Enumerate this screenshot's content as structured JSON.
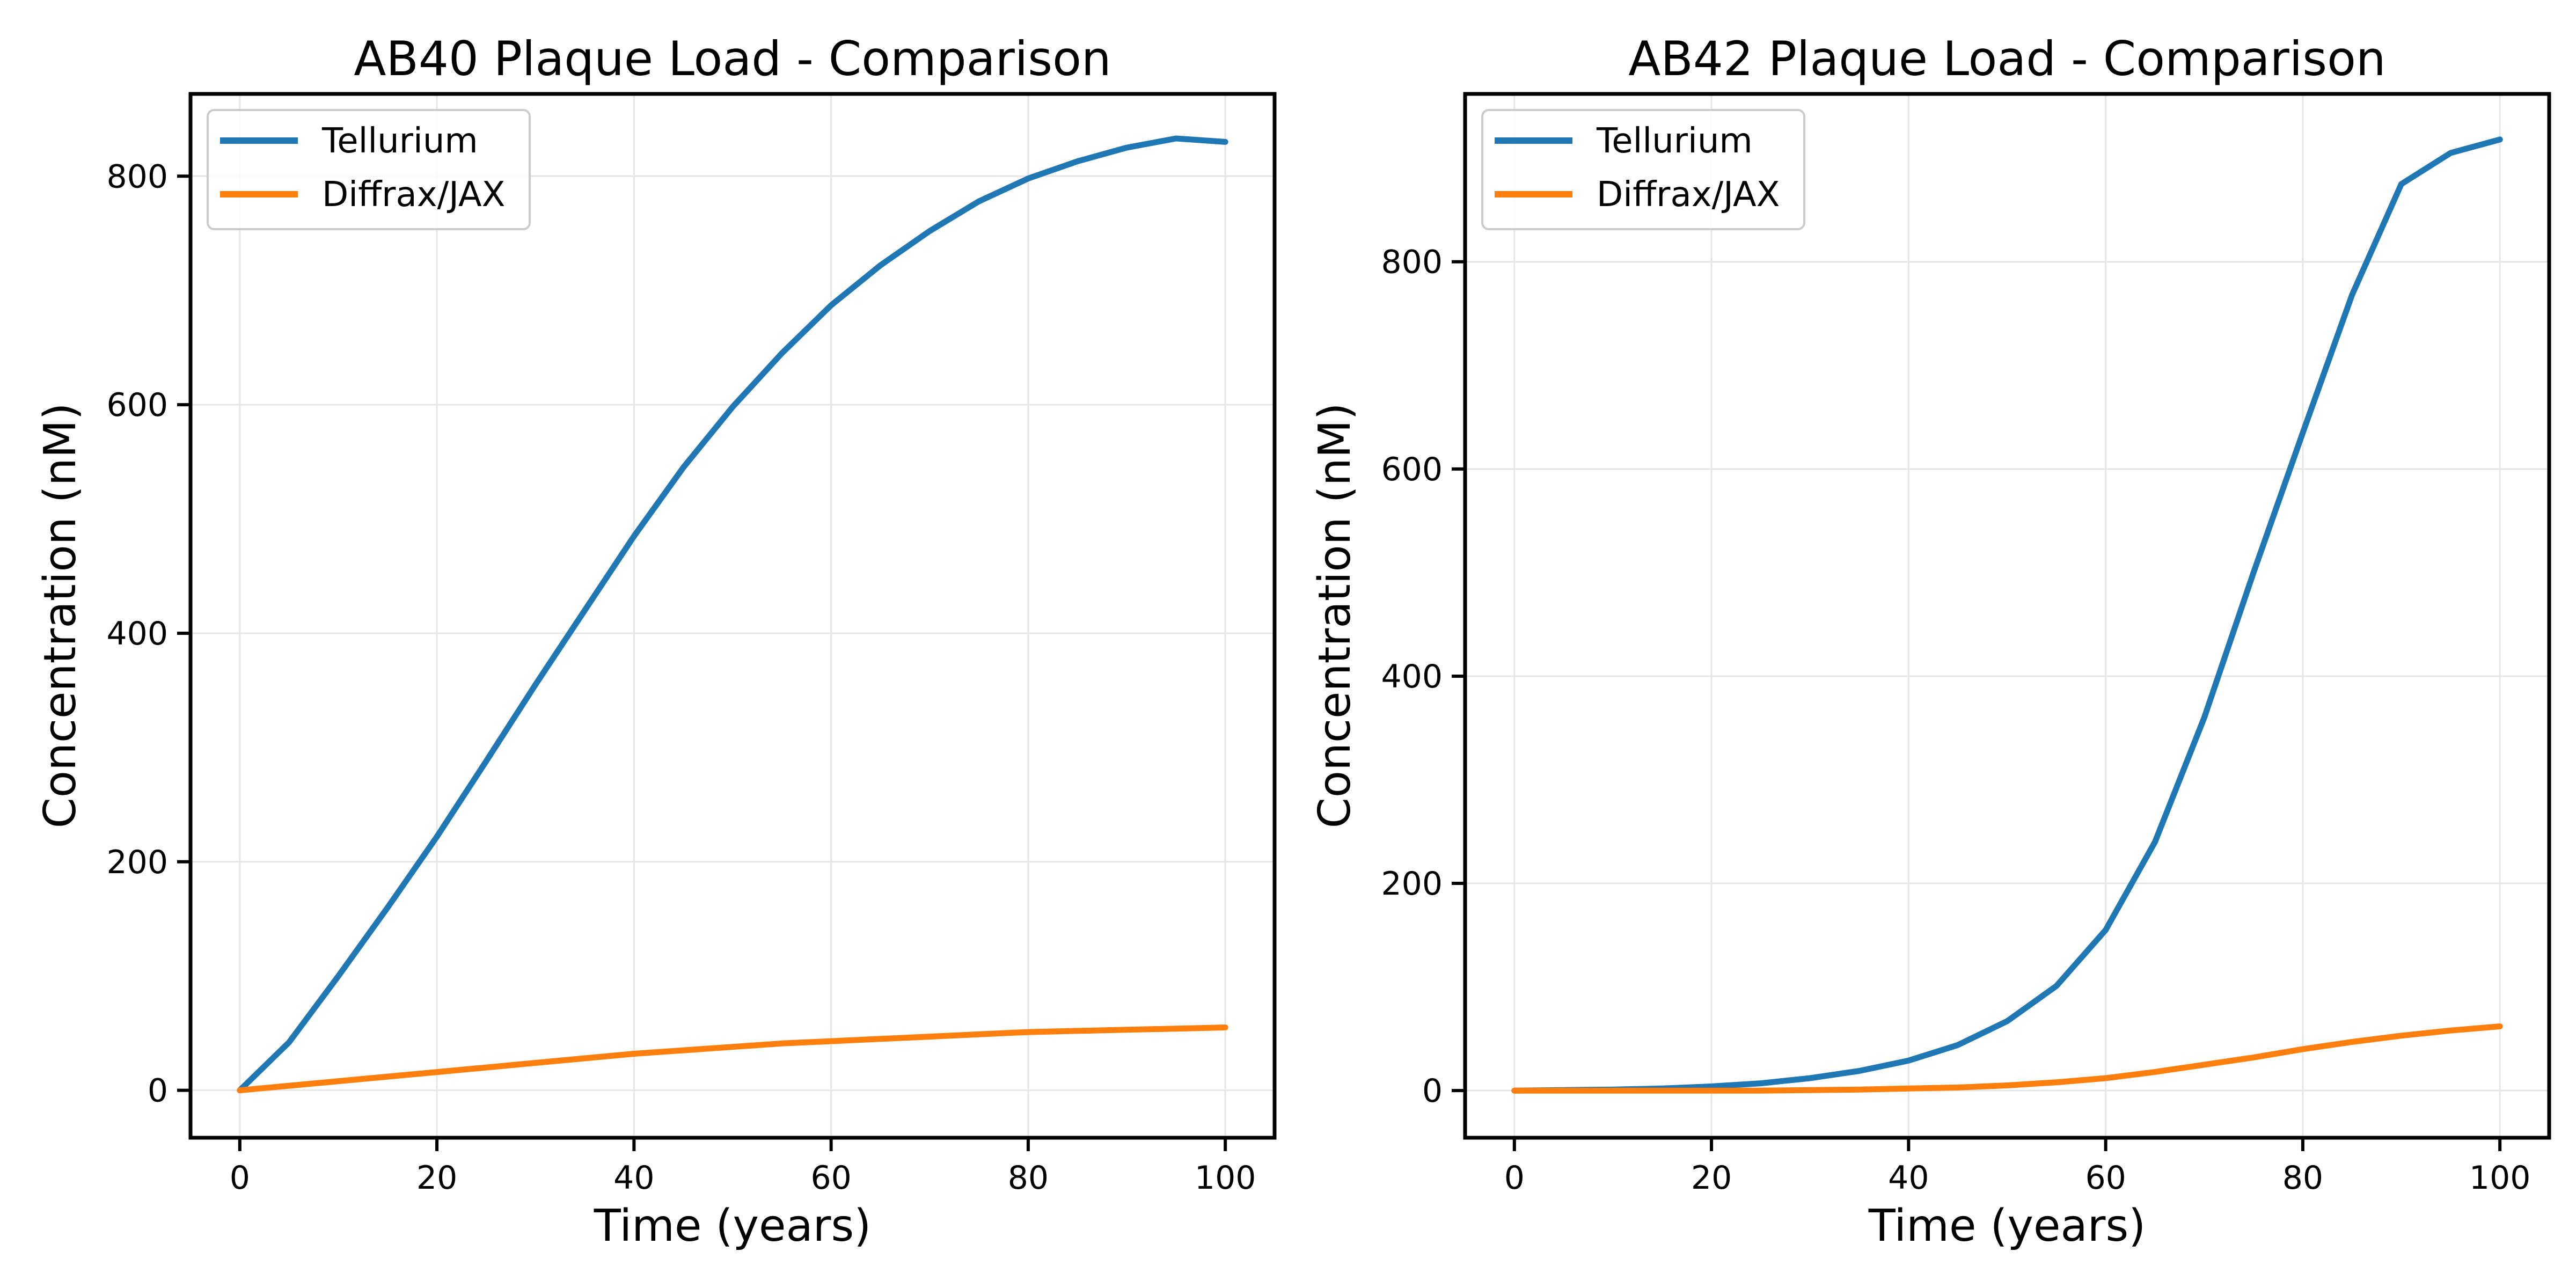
{
  "chart_data": [
    {
      "type": "line",
      "title": "AB40 Plaque Load - Comparison",
      "xlabel": "Time (years)",
      "ylabel": "Concentration (nM)",
      "xlim": [
        -5,
        105
      ],
      "ylim": [
        -41.5,
        872
      ],
      "xticks": [
        0,
        20,
        40,
        60,
        80,
        100
      ],
      "yticks": [
        0,
        200,
        400,
        600,
        800
      ],
      "grid": true,
      "legend_position": "top-left",
      "x": [
        0,
        5,
        10,
        15,
        20,
        25,
        30,
        35,
        40,
        45,
        50,
        55,
        60,
        65,
        70,
        75,
        80,
        85,
        90,
        95,
        100
      ],
      "series": [
        {
          "name": "Tellurium",
          "color": "#1f77b4",
          "values": [
            0,
            42,
            100,
            160,
            222,
            288,
            355,
            420,
            485,
            545,
            598,
            645,
            687,
            722,
            752,
            778,
            798,
            813,
            825,
            833,
            830
          ]
        },
        {
          "name": "Diffrax/JAX",
          "color": "#ff7f0e",
          "values": [
            0,
            4,
            8,
            12,
            16,
            20,
            24,
            28,
            32,
            35,
            38,
            41,
            43,
            45,
            47,
            49,
            51,
            52,
            53,
            54,
            55
          ]
        }
      ]
    },
    {
      "type": "line",
      "title": "AB42 Plaque Load - Comparison",
      "xlabel": "Time (years)",
      "ylabel": "Concentration (nM)",
      "xlim": [
        -5,
        105
      ],
      "ylim": [
        -45.5,
        962
      ],
      "xticks": [
        0,
        20,
        40,
        60,
        80,
        100
      ],
      "yticks": [
        0,
        200,
        400,
        600,
        800
      ],
      "grid": true,
      "legend_position": "top-left",
      "x": [
        0,
        5,
        10,
        15,
        20,
        25,
        30,
        35,
        40,
        45,
        50,
        55,
        60,
        65,
        70,
        75,
        80,
        85,
        90,
        95,
        100
      ],
      "series": [
        {
          "name": "Tellurium",
          "color": "#1f77b4",
          "values": [
            0,
            0.5,
            1,
            2,
            4,
            7,
            12,
            19,
            29,
            44,
            67,
            101,
            155,
            240,
            360,
            500,
            635,
            768,
            875,
            905,
            918
          ]
        },
        {
          "name": "Diffrax/JAX",
          "color": "#ff7f0e",
          "values": [
            0,
            0,
            0,
            0,
            0,
            0,
            0.5,
            1,
            2,
            3,
            5,
            8,
            12,
            18,
            25,
            32,
            40,
            47,
            53,
            58,
            62
          ]
        }
      ]
    }
  ]
}
